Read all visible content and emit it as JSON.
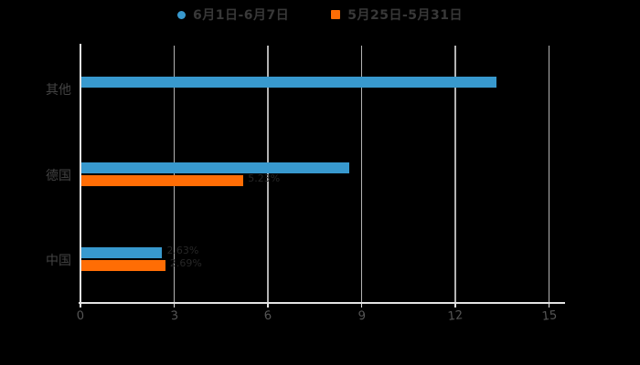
{
  "page": {
    "background": "#000000"
  },
  "legend": {
    "text_color": "#383838",
    "items": [
      {
        "label": "6月1日-6月7日",
        "marker": "circle",
        "color": "#3899ce"
      },
      {
        "label": "5月25日-5月31日",
        "marker": "square",
        "color": "#ff6d05"
      }
    ]
  },
  "chart_data": {
    "type": "bar",
    "orientation": "horizontal",
    "title": "",
    "categories": [
      "其他",
      "德国",
      "中国"
    ],
    "series": [
      {
        "name": "6月1日-6月7日",
        "color": "#3899ce",
        "values": [
          13.3,
          8.6,
          2.6
        ]
      },
      {
        "name": "5月25日-5月31日",
        "color": "#ff6d05",
        "values": [
          null,
          5.2,
          2.7
        ]
      }
    ],
    "bar_labels": [
      {
        "category_index": 1,
        "series_index": 1,
        "text": "5.23%"
      },
      {
        "category_index": 2,
        "series_index": 0,
        "text": "2.63%"
      },
      {
        "category_index": 2,
        "series_index": 1,
        "text": "2.69%"
      }
    ],
    "x_ticks": [
      0,
      3,
      6,
      9,
      12,
      15
    ],
    "xlim": [
      0,
      15.5
    ],
    "grid": "vertical-lines",
    "legend_position": "top-center",
    "axis_color": "#e3e3e3",
    "grid_color": "#b3b3b3",
    "tick_label_color": "#555555",
    "category_label_color": "#434343",
    "data_label_color": "#262626"
  }
}
